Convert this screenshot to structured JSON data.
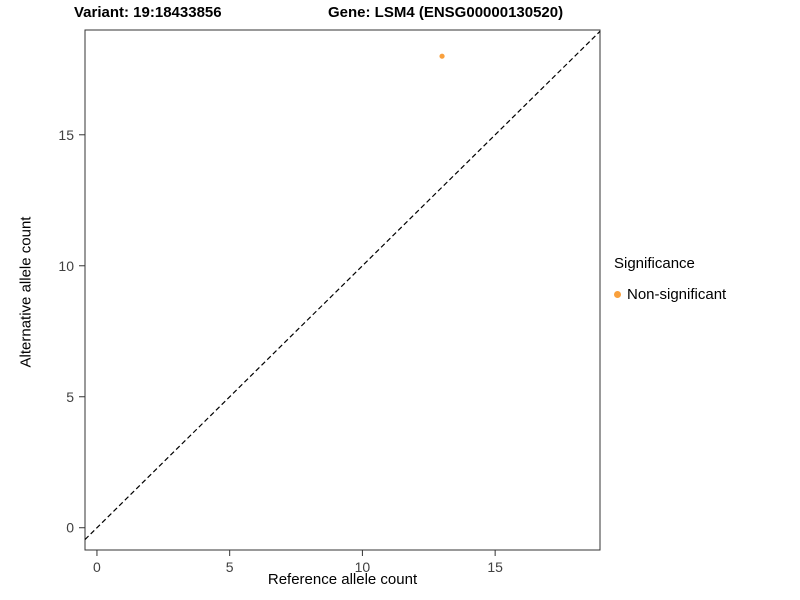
{
  "header": {
    "left_title": "Variant: 19:18433856",
    "right_title": "Gene: LSM4 (ENSG00000130520)"
  },
  "chart_data": {
    "type": "scatter",
    "title_left": "Variant: 19:18433856",
    "title_right": "Gene: LSM4 (ENSG00000130520)",
    "xlabel": "Reference allele count",
    "ylabel": "Alternative allele count",
    "xlim": [
      -0.45,
      18.95
    ],
    "ylim": [
      -0.85,
      19.0
    ],
    "xticks": [
      0,
      5,
      10,
      15
    ],
    "yticks": [
      0,
      5,
      10,
      15
    ],
    "grid": false,
    "points": [
      {
        "x": 13,
        "y": 18,
        "series": "Non-significant"
      }
    ],
    "identity_line": {
      "style": "dashed",
      "slope": 1,
      "intercept": 0
    },
    "legend": {
      "title": "Significance",
      "position": "right",
      "items": [
        {
          "label": "Non-significant",
          "color": "#F9A03C"
        }
      ]
    },
    "colors": {
      "point": "#F9A03C",
      "line": "#000000",
      "panel_border": "#333333",
      "tick": "#333333"
    }
  }
}
